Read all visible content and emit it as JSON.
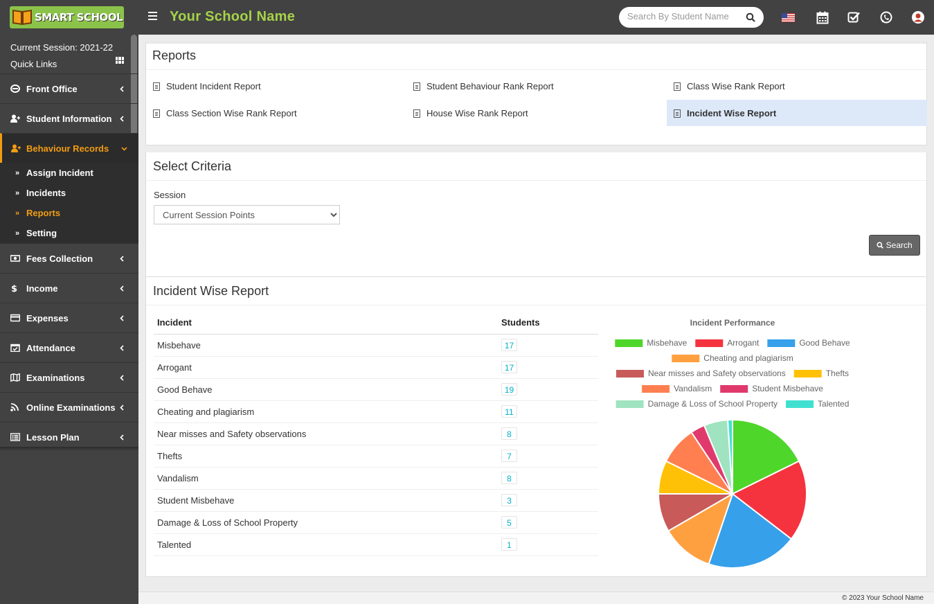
{
  "header": {
    "logo_text": "SMART SCHOOL",
    "school_name": "Your School Name",
    "search_placeholder": "Search By Student Name"
  },
  "sidebar": {
    "session": "Current Session: 2021-22",
    "quick_links": "Quick Links",
    "menu": [
      {
        "label": "Front Office",
        "icon": "front-office-icon"
      },
      {
        "label": "Student Information",
        "icon": "user-add-icon"
      },
      {
        "label": "Behaviour Records",
        "icon": "user-add-icon",
        "active": true
      },
      {
        "label": "Fees Collection",
        "icon": "money-icon"
      },
      {
        "label": "Income",
        "icon": "dollar-icon"
      },
      {
        "label": "Expenses",
        "icon": "credit-card-icon"
      },
      {
        "label": "Attendance",
        "icon": "calendar-check-icon"
      },
      {
        "label": "Examinations",
        "icon": "map-icon"
      },
      {
        "label": "Online Examinations",
        "icon": "rss-icon"
      },
      {
        "label": "Lesson Plan",
        "icon": "list-icon"
      }
    ],
    "submenu": [
      "Assign Incident",
      "Incidents",
      "Reports",
      "Setting"
    ],
    "submenu_current": "Reports"
  },
  "reports": {
    "title": "Reports",
    "links": [
      "Student Incident Report",
      "Student Behaviour Rank Report",
      "Class Wise Rank Report",
      "Class Section Wise Rank Report",
      "House Wise Rank Report",
      "Incident Wise Report"
    ],
    "selected": "Incident Wise Report"
  },
  "criteria": {
    "title": "Select Criteria",
    "session_label": "Session",
    "session_value": "Current Session Points",
    "search_label": "Search"
  },
  "report": {
    "title": "Incident Wise Report",
    "col_incident": "Incident",
    "col_students": "Students"
  },
  "chart_data": {
    "type": "pie",
    "title": "Incident Performance",
    "categories": [
      "Misbehave",
      "Arrogant",
      "Good Behave",
      "Cheating and plagiarism",
      "Near misses and Safety observations",
      "Thefts",
      "Vandalism",
      "Student Misbehave",
      "Damage & Loss of School Property",
      "Talented"
    ],
    "values": [
      17,
      17,
      19,
      11,
      8,
      7,
      8,
      3,
      5,
      1
    ],
    "colors": [
      "#4fd62a",
      "#f5333f",
      "#36a0ea",
      "#ffa040",
      "#c85a5a",
      "#ffc107",
      "#ff7f50",
      "#e03a6c",
      "#a0e3c0",
      "#40e0d0"
    ],
    "legend": "top"
  },
  "footer": {
    "text": "© 2023 Your School Name"
  }
}
